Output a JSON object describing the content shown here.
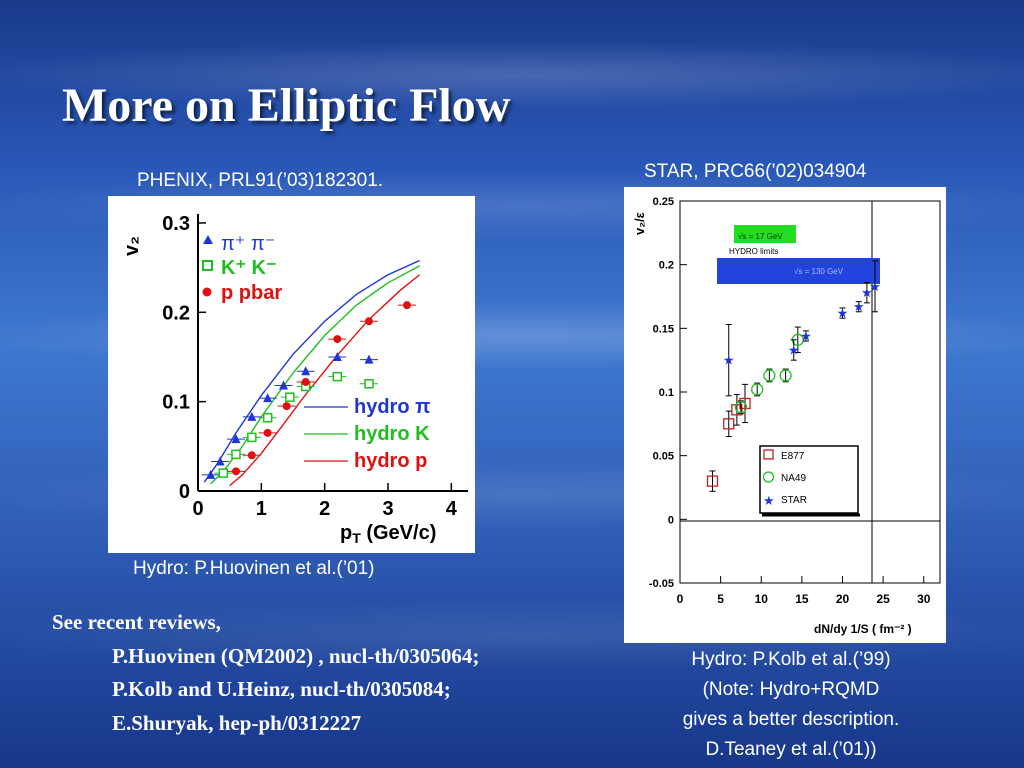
{
  "title": "More on Elliptic Flow",
  "left_panel": {
    "source": "PHENIX, PRL91(’03)182301.",
    "caption": "Hydro: P.Huovinen et al.(’01)"
  },
  "right_panel": {
    "source": "STAR, PRC66(’02)034904",
    "caption_lines": [
      "Hydro: P.Kolb et al.(’99)",
      "(Note: Hydro+RQMD",
      "gives a better description.",
      "D.Teaney et al.(’01))"
    ]
  },
  "refs": {
    "intro": "See recent  reviews,",
    "items": [
      "P.Huovinen (QM2002) , nucl-th/0305064;",
      "P.Kolb and U.Heinz, nucl-th/0305084;",
      "E.Shuryak, hep-ph/0312227"
    ]
  },
  "colors": {
    "blue": "#1f35d6",
    "green": "#1fbf1f",
    "red": "#e01010",
    "dark_red": "#c02020"
  },
  "chart_data": [
    {
      "type": "scatter",
      "xlabel": "p_T (GeV/c)",
      "ylabel": "v_2",
      "xlim": [
        0,
        4.2
      ],
      "ylim": [
        0,
        0.31
      ],
      "x_ticks": [
        "0",
        "1",
        "2",
        "3",
        "4"
      ],
      "y_ticks": [
        "0",
        "0.1",
        "0.2",
        "0.3"
      ],
      "legend_top": [
        {
          "symbol": "triangle",
          "label": "π⁺ π⁻"
        },
        {
          "symbol": "open-square",
          "label": "K⁺ K⁻"
        },
        {
          "symbol": "dot",
          "label": "p  pbar"
        }
      ],
      "legend_bottom": [
        {
          "series": "hydro-pi",
          "label": "hydro π"
        },
        {
          "series": "hydro-k",
          "label": "hydro K"
        },
        {
          "series": "hydro-p",
          "label": "hydro p"
        }
      ],
      "series": [
        {
          "name": "π⁺ π⁻",
          "marker": "triangle",
          "color": "#1f35d6",
          "x": [
            0.2,
            0.35,
            0.6,
            0.85,
            1.1,
            1.35,
            1.7,
            2.2,
            2.7
          ],
          "y": [
            0.018,
            0.033,
            0.058,
            0.083,
            0.104,
            0.118,
            0.134,
            0.15,
            0.147
          ]
        },
        {
          "name": "K⁺ K⁻",
          "marker": "open-square",
          "color": "#1fbf1f",
          "x": [
            0.4,
            0.6,
            0.85,
            1.1,
            1.45,
            1.7,
            2.2,
            2.7
          ],
          "y": [
            0.02,
            0.041,
            0.06,
            0.082,
            0.105,
            0.117,
            0.128,
            0.12
          ]
        },
        {
          "name": "p  pbar",
          "marker": "dot",
          "color": "#e01010",
          "x": [
            0.6,
            0.85,
            1.1,
            1.4,
            1.7,
            2.2,
            2.7,
            3.3
          ],
          "y": [
            0.022,
            0.04,
            0.065,
            0.095,
            0.122,
            0.17,
            0.19,
            0.208
          ]
        }
      ],
      "curves": [
        {
          "name": "hydro-pi",
          "color": "#1f35d6",
          "x": [
            0.1,
            0.3,
            0.6,
            1.0,
            1.5,
            2.0,
            2.5,
            3.0,
            3.5
          ],
          "y": [
            0.01,
            0.03,
            0.065,
            0.107,
            0.153,
            0.19,
            0.22,
            0.242,
            0.258
          ]
        },
        {
          "name": "hydro-k",
          "color": "#1fbf1f",
          "x": [
            0.2,
            0.4,
            0.7,
            1.0,
            1.5,
            2.0,
            2.5,
            3.0,
            3.5
          ],
          "y": [
            0.008,
            0.022,
            0.05,
            0.083,
            0.132,
            0.174,
            0.208,
            0.233,
            0.252
          ]
        },
        {
          "name": "hydro-p",
          "color": "#e01010",
          "x": [
            0.5,
            0.7,
            1.0,
            1.3,
            1.7,
            2.2,
            2.7,
            3.2,
            3.5
          ],
          "y": [
            0.006,
            0.018,
            0.042,
            0.07,
            0.108,
            0.152,
            0.192,
            0.225,
            0.242
          ]
        }
      ]
    },
    {
      "type": "scatter",
      "xlabel": "dN/dy 1/S ( fm⁻² )",
      "ylabel": "v₂/ε",
      "xlim": [
        0,
        32
      ],
      "ylim": [
        -0.05,
        0.25
      ],
      "x_ticks": [
        "0",
        "5",
        "10",
        "15",
        "20",
        "25",
        "30"
      ],
      "y_ticks": [
        "-0.05",
        "0",
        "0.05",
        "0.1",
        "0.15",
        "0.2",
        "0.25"
      ],
      "labels": [
        "√s = 17 GeV",
        "HYDRO  limits",
        "√s = 130 GeV"
      ],
      "legend": [
        "E877",
        "NA49",
        "STAR"
      ],
      "series": [
        {
          "name": "E877",
          "marker": "open-square",
          "color": "#c02020",
          "x": [
            4,
            6,
            7,
            8
          ],
          "y": [
            0.03,
            0.075,
            0.086,
            0.091
          ],
          "err": [
            0.008,
            0.01,
            0.012,
            0.015
          ]
        },
        {
          "name": "NA49",
          "marker": "open-circle",
          "color": "#1fbf1f",
          "x": [
            7.5,
            9.5,
            11,
            13,
            14.5
          ],
          "y": [
            0.088,
            0.102,
            0.113,
            0.113,
            0.141
          ],
          "err": [
            0.005,
            0.005,
            0.005,
            0.005,
            0.01
          ]
        },
        {
          "name": "STAR",
          "marker": "star",
          "color": "#1f35d6",
          "x": [
            6,
            14,
            15.5,
            20,
            22,
            23,
            24
          ],
          "y": [
            0.125,
            0.133,
            0.144,
            0.162,
            0.167,
            0.178,
            0.183
          ],
          "err": [
            0.028,
            0.008,
            0.004,
            0.004,
            0.004,
            0.008,
            0.02
          ]
        }
      ]
    }
  ]
}
